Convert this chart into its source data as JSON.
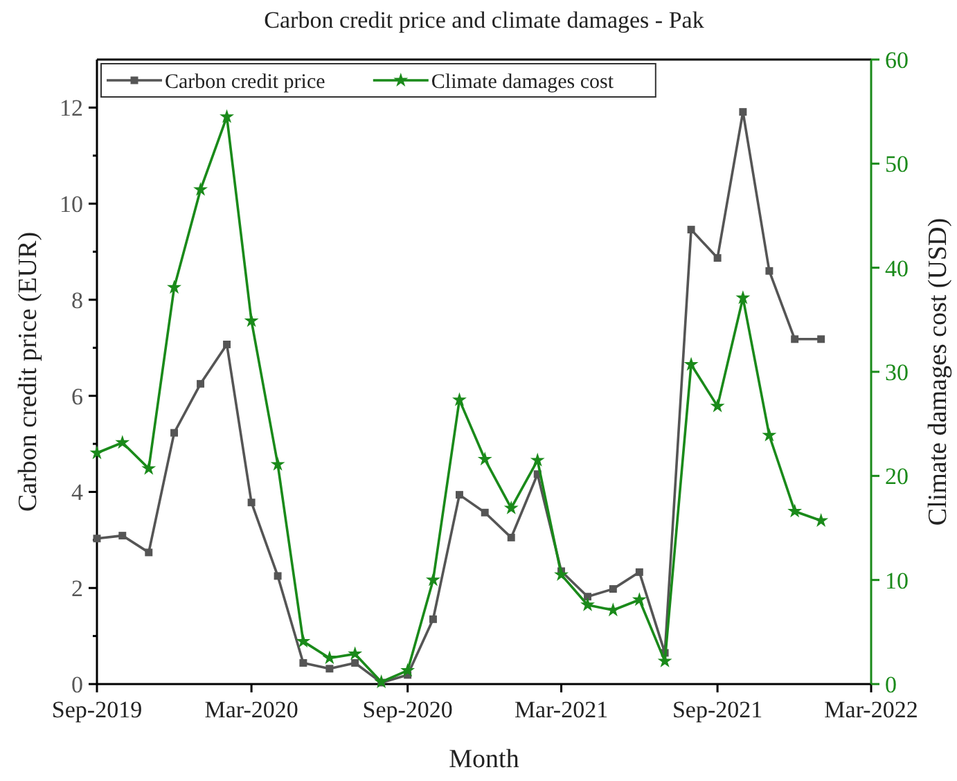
{
  "chart_data": {
    "type": "line",
    "title": "Carbon credit price and climate damages - Pak",
    "xlabel": "Month",
    "ylabel": "Carbon credit price (EUR)",
    "y2label": "Climate damages cost (USD)",
    "x": [
      "2019-09",
      "2019-10",
      "2019-11",
      "2019-12",
      "2020-01",
      "2020-02",
      "2020-03",
      "2020-04",
      "2020-05",
      "2020-06",
      "2020-07",
      "2020-08",
      "2020-09",
      "2020-10",
      "2020-11",
      "2020-12",
      "2021-01",
      "2021-02",
      "2021-03",
      "2021-04",
      "2021-05",
      "2021-06",
      "2021-07",
      "2021-08",
      "2021-09",
      "2021-10",
      "2021-11",
      "2021-12",
      "2022-01"
    ],
    "xlim": [
      "2019-09",
      "2022-03"
    ],
    "xticks": [
      {
        "value": "2019-09",
        "label": "Sep-2019"
      },
      {
        "value": "2020-03",
        "label": "Mar-2020"
      },
      {
        "value": "2020-09",
        "label": "Sep-2020"
      },
      {
        "value": "2021-03",
        "label": "Mar-2021"
      },
      {
        "value": "2021-09",
        "label": "Sep-2021"
      },
      {
        "value": "2022-03",
        "label": "Mar-2022"
      }
    ],
    "ylim": [
      0,
      13
    ],
    "yticks": [
      0,
      {
        "value": 1,
        "label": null
      },
      2,
      {
        "value": 3,
        "label": null
      },
      4,
      {
        "value": 5,
        "label": null
      },
      6,
      {
        "value": 7,
        "label": null
      },
      8,
      {
        "value": 9,
        "label": null
      },
      10,
      {
        "value": 11,
        "label": null
      },
      12
    ],
    "y2lim": [
      0,
      60
    ],
    "y2ticks": [
      0,
      10,
      20,
      30,
      40,
      50,
      60
    ],
    "legend": "top left",
    "series": [
      {
        "name": "Carbon credit price",
        "color": "#555555",
        "marker": "square",
        "values": [
          3.03,
          3.09,
          2.74,
          5.23,
          6.25,
          7.07,
          3.78,
          2.25,
          0.44,
          0.32,
          0.44,
          0.03,
          0.19,
          1.35,
          3.94,
          3.57,
          3.05,
          4.37,
          2.35,
          1.82,
          1.98,
          2.33,
          0.65,
          9.46,
          8.87,
          11.91,
          8.6,
          7.18,
          7.18
        ]
      },
      {
        "name": "Climate damages cost",
        "color": "#1a8a1a",
        "marker": "star",
        "axis": "y2",
        "values": [
          22.2,
          23.2,
          20.7,
          38.1,
          47.5,
          54.5,
          34.9,
          21.1,
          4.1,
          2.5,
          2.9,
          0.2,
          1.3,
          10.0,
          27.3,
          21.6,
          16.9,
          21.5,
          10.5,
          7.6,
          7.1,
          8.1,
          2.2,
          30.7,
          26.7,
          37.1,
          23.9,
          16.6,
          15.7
        ]
      }
    ]
  }
}
